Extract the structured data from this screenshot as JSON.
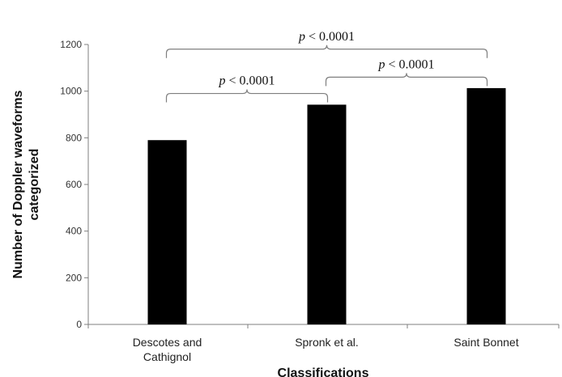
{
  "chart_data": {
    "type": "bar",
    "categories": [
      [
        "Descotes and",
        "Cathignol"
      ],
      [
        "Spronk et al."
      ],
      [
        "Saint Bonnet"
      ]
    ],
    "values": [
      790,
      942,
      1013
    ],
    "xlabel": "Classifications",
    "ylabel": [
      "Number of Doppler waveforms",
      "categorized"
    ],
    "ylim": [
      0,
      1200
    ],
    "yticks": [
      0,
      200,
      400,
      600,
      800,
      1000,
      1200
    ],
    "grid": false,
    "legend": "none",
    "bar_color": "#000000",
    "annotations": [
      {
        "from": 0,
        "to": 2,
        "p_symbol": "p",
        "text": " < 0.0001",
        "level": 1180
      },
      {
        "from": 0,
        "to": 1,
        "p_symbol": "p",
        "text": " < 0.0001",
        "level": 990
      },
      {
        "from": 1,
        "to": 2,
        "p_symbol": "p",
        "text": " < 0.0001",
        "level": 1060
      }
    ]
  }
}
